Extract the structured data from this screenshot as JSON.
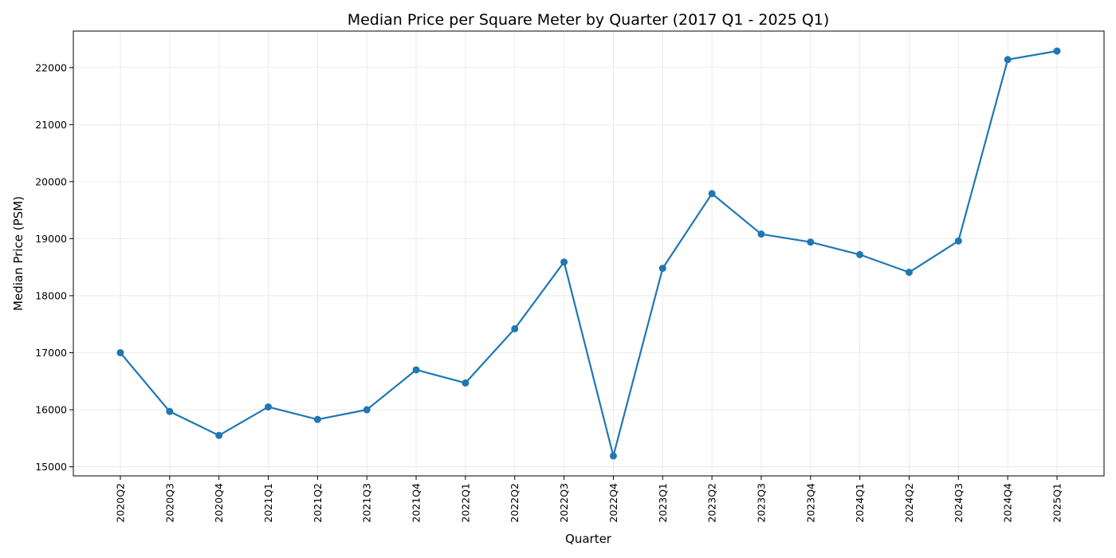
{
  "chart_data": {
    "type": "line",
    "title": "Median Price per Square Meter by Quarter (2017 Q1 - 2025 Q1)",
    "xlabel": "Quarter",
    "ylabel": "Median Price (PSM)",
    "categories": [
      "2020Q2",
      "2020Q3",
      "2020Q4",
      "2021Q1",
      "2021Q2",
      "2021Q3",
      "2021Q4",
      "2022Q1",
      "2022Q2",
      "2022Q3",
      "2022Q4",
      "2023Q1",
      "2023Q2",
      "2023Q3",
      "2023Q4",
      "2024Q1",
      "2024Q2",
      "2024Q3",
      "2024Q4",
      "2025Q1"
    ],
    "series": [
      {
        "name": "Median Price (PSM)",
        "color": "#1f77b4",
        "values": [
          17000,
          15970,
          15550,
          16050,
          15830,
          16000,
          16700,
          16470,
          17420,
          18590,
          15190,
          18480,
          19790,
          19080,
          18940,
          18720,
          18410,
          18960,
          22140,
          22290
        ]
      }
    ],
    "yticks": [
      15000,
      16000,
      17000,
      18000,
      19000,
      20000,
      21000,
      22000
    ],
    "ylim": [
      14840,
      22640
    ],
    "grid": true
  }
}
